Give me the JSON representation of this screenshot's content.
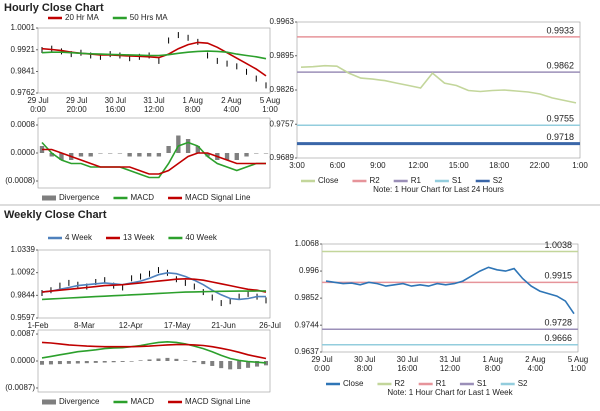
{
  "headers": [
    "Hourly Close Chart",
    "Weekly Close Chart"
  ],
  "chart_data": [
    {
      "type": "line",
      "x_labels": [
        [
          "29 Jul",
          "0:00"
        ],
        [
          "29 Jul",
          "20:00"
        ],
        [
          "30 Jul",
          "16:00"
        ],
        [
          "31 Jul",
          "12:00"
        ],
        [
          "1 Aug",
          "8:00"
        ],
        [
          "2 Aug",
          "4:00"
        ],
        [
          "5 Aug",
          "1:00"
        ]
      ],
      "ylim": [
        0.9762,
        1.0001
      ],
      "yticks": [
        1.0001,
        0.9921,
        0.9841,
        0.9762
      ],
      "series": [
        {
          "name": null,
          "color": "#000000",
          "values": [
            0.992,
            0.9925,
            0.9915,
            0.9905,
            0.991,
            0.99,
            0.9895,
            0.9905,
            0.99,
            0.989,
            0.9895,
            0.99,
            0.988,
            0.9955,
            0.9975,
            0.9965,
            0.995,
            0.99,
            0.988,
            0.987,
            0.986,
            0.984,
            0.9815,
            0.979
          ]
        },
        {
          "name": "20 Hr MA",
          "color": "#c00000",
          "values": [
            0.9925,
            0.9922,
            0.9918,
            0.9912,
            0.9908,
            0.9905,
            0.9902,
            0.9902,
            0.99,
            0.9898,
            0.9897,
            0.9895,
            0.9892,
            0.9905,
            0.9925,
            0.994,
            0.9948,
            0.9945,
            0.993,
            0.991,
            0.989,
            0.987,
            0.985,
            0.9825
          ]
        },
        {
          "name": "50 Hrs MA",
          "color": "#2ca02c",
          "values": [
            0.991,
            0.9912,
            0.9912,
            0.991,
            0.9908,
            0.9906,
            0.9905,
            0.9904,
            0.9903,
            0.9902,
            0.9901,
            0.99,
            0.99,
            0.9903,
            0.9908,
            0.9912,
            0.9915,
            0.9916,
            0.9915,
            0.9912,
            0.9905,
            0.99,
            0.9895,
            0.9888
          ]
        }
      ]
    },
    {
      "type": "macd",
      "ylim": [
        -0.001,
        0.001
      ],
      "yticks": [
        {
          "value": 0.0008,
          "label": "0.0008"
        },
        {
          "value": 0,
          "label": "0.0000"
        },
        {
          "value": -0.0008,
          "label": "(0.0008)"
        }
      ],
      "series": [
        {
          "name": "Divergence",
          "color": "#7f7f7f",
          "type": "bar",
          "values": [
            0.0002,
            -0.0001,
            -0.0002,
            -0.0002,
            -0.0001,
            -0.0001,
            0,
            0,
            0,
            -0.0001,
            -0.0001,
            -0.0001,
            -0.0001,
            0.0002,
            0.0005,
            0.0004,
            0.0002,
            -0.0001,
            -0.0002,
            -0.0002,
            -0.0002,
            -0.0001,
            0,
            0
          ]
        },
        {
          "name": "MACD",
          "color": "#2ca02c",
          "values": [
            0.0003,
            0,
            -0.0002,
            -0.0003,
            -0.0003,
            -0.0004,
            -0.0004,
            -0.0004,
            -0.0004,
            -0.0005,
            -0.0006,
            -0.0007,
            -0.0007,
            -0.0003,
            0.0002,
            0.0003,
            0.0002,
            -0.0001,
            -0.0003,
            -0.0004,
            -0.0005,
            -0.0004,
            -0.0003,
            -0.0003
          ]
        },
        {
          "name": "MACD Signal Line",
          "color": "#c00000",
          "values": [
            0.0001,
            0.0001,
            0,
            -0.0001,
            -0.0002,
            -0.0003,
            -0.0004,
            -0.0004,
            -0.0004,
            -0.0004,
            -0.0005,
            -0.0006,
            -0.0006,
            -0.0005,
            -0.0003,
            -0.0001,
            0,
            0,
            -0.0001,
            -0.0002,
            -0.0003,
            -0.0003,
            -0.0003,
            -0.0003
          ]
        }
      ]
    },
    {
      "type": "pivot",
      "x_labels": [
        [
          "3:00"
        ],
        [
          "6:00"
        ],
        [
          "9:00"
        ],
        [
          "12:00"
        ],
        [
          "15:00"
        ],
        [
          "18:00"
        ],
        [
          "22:00"
        ],
        [
          "1:00"
        ]
      ],
      "ylim": [
        0.9689,
        0.9963
      ],
      "yticks": [
        0.9963,
        0.9895,
        0.9826,
        0.9757,
        0.9689
      ],
      "series": [
        {
          "name": "Close",
          "color": "#c3d69b",
          "values": [
            0.9872,
            0.9873,
            0.9875,
            0.9874,
            0.986,
            0.985,
            0.9848,
            0.9845,
            0.984,
            0.9835,
            0.983,
            0.986,
            0.984,
            0.9835,
            0.9825,
            0.9823,
            0.9825,
            0.9826,
            0.9824,
            0.9822,
            0.9818,
            0.981,
            0.9805,
            0.98
          ]
        }
      ],
      "levels": [
        {
          "name": "R2",
          "color": "#e6949a",
          "value": 0.9933
        },
        {
          "name": "R1",
          "color": "#9b8fb8",
          "value": 0.9862
        },
        {
          "name": "S1",
          "color": "#93cddd",
          "value": 0.9755
        },
        {
          "name": "S2",
          "color": "#3a66a8",
          "value": 0.9718
        }
      ],
      "note": "Note: 1 Hour Chart for Last 24 Hours"
    },
    {
      "type": "line",
      "x_labels": [
        [
          "1-Feb"
        ],
        [
          "8-Mar"
        ],
        [
          "12-Apr"
        ],
        [
          "17-May"
        ],
        [
          "21-Jun"
        ],
        [
          "26-Jul"
        ]
      ],
      "ylim": [
        0.9597,
        1.0339
      ],
      "yticks": [
        1.0339,
        1.0092,
        0.9844,
        0.9597
      ],
      "series": [
        {
          "name": null,
          "color": "#000000",
          "values": [
            0.987,
            0.99,
            0.995,
            0.998,
            0.996,
            0.994,
            0.999,
            1.001,
            0.995,
            0.993,
            1.003,
            1.005,
            1.008,
            1.012,
            1.009,
            1.002,
            0.998,
            0.994,
            0.988,
            0.982,
            0.976,
            0.978,
            0.983,
            0.986,
            0.983,
            0.979
          ]
        },
        {
          "name": "4 Week",
          "color": "#4f81bd",
          "values": [
            0.988,
            0.989,
            0.991,
            0.993,
            0.995,
            0.996,
            0.997,
            0.998,
            0.997,
            0.996,
            0.998,
            1.0,
            1.003,
            1.007,
            1.009,
            1.008,
            1.005,
            1.001,
            0.996,
            0.99,
            0.985,
            0.981,
            0.98,
            0.981,
            0.983,
            0.983
          ]
        },
        {
          "name": "13 Week",
          "color": "#c00000",
          "values": [
            0.988,
            0.989,
            0.99,
            0.991,
            0.992,
            0.993,
            0.994,
            0.995,
            0.9955,
            0.996,
            0.997,
            0.998,
            0.999,
            1.0,
            1.001,
            1.002,
            1.0025,
            1.002,
            1.001,
            0.999,
            0.997,
            0.995,
            0.993,
            0.991,
            0.99,
            0.988
          ]
        },
        {
          "name": "40 Week",
          "color": "#2ca02c",
          "values": [
            0.98,
            0.9805,
            0.981,
            0.9815,
            0.982,
            0.9825,
            0.983,
            0.9835,
            0.984,
            0.9845,
            0.985,
            0.9855,
            0.986,
            0.9865,
            0.987,
            0.9875,
            0.988,
            0.9882,
            0.9884,
            0.9886,
            0.9888,
            0.9889,
            0.989,
            0.9891,
            0.9892,
            0.9893
          ]
        }
      ]
    },
    {
      "type": "macd",
      "ylim": [
        -0.01,
        0.01
      ],
      "yticks": [
        {
          "value": 0.0087,
          "label": "0.0087"
        },
        {
          "value": 0,
          "label": "0.0000"
        },
        {
          "value": -0.0087,
          "label": "(0.0087)"
        }
      ],
      "series": [
        {
          "name": "Divergence",
          "color": "#7f7f7f",
          "type": "bar",
          "values": [
            -0.0012,
            -0.0011,
            -0.001,
            -0.0009,
            -0.0008,
            -0.0007,
            -0.0006,
            -0.0005,
            -0.0004,
            -0.0003,
            -0.0002,
            0.0002,
            0.0005,
            0.0008,
            0.001,
            0.0007,
            0.0002,
            -0.0004,
            -0.001,
            -0.0016,
            -0.0023,
            -0.0027,
            -0.0026,
            -0.0022,
            -0.0018,
            -0.0014
          ]
        },
        {
          "name": "MACD",
          "color": "#2ca02c",
          "values": [
            0.001,
            0.0015,
            0.002,
            0.0025,
            0.003,
            0.0033,
            0.0036,
            0.004,
            0.0042,
            0.0043,
            0.0046,
            0.005,
            0.0055,
            0.006,
            0.0062,
            0.006,
            0.0055,
            0.0048,
            0.004,
            0.003,
            0.0018,
            0.0008,
            0.0002,
            -0.0002,
            -0.0004,
            -0.0006
          ]
        },
        {
          "name": "MACD Signal Line",
          "color": "#c00000",
          "values": [
            0.006,
            0.0058,
            0.0055,
            0.0052,
            0.005,
            0.0048,
            0.0047,
            0.0046,
            0.0046,
            0.0046,
            0.0046,
            0.0047,
            0.0048,
            0.005,
            0.0052,
            0.0053,
            0.0053,
            0.0052,
            0.005,
            0.0046,
            0.0041,
            0.0035,
            0.0028,
            0.002,
            0.0014,
            0.0008
          ]
        }
      ]
    },
    {
      "type": "pivot",
      "x_labels": [
        [
          "29 Jul",
          "0:00"
        ],
        [
          "30 Jul",
          "8:00"
        ],
        [
          "30 Jul",
          "16:00"
        ],
        [
          "31 Jul",
          "12:00"
        ],
        [
          "1 Aug",
          "8:00"
        ],
        [
          "2 Aug",
          "4:00"
        ],
        [
          "5 Aug",
          "1:00"
        ]
      ],
      "ylim": [
        0.9637,
        1.0068
      ],
      "yticks": [
        1.0068,
        0.996,
        0.9852,
        0.9744,
        0.9637
      ],
      "series": [
        {
          "name": "Close",
          "color": "#2e75b6",
          "values": [
            0.992,
            0.9915,
            0.991,
            0.9912,
            0.9905,
            0.9915,
            0.991,
            0.99,
            0.9905,
            0.991,
            0.99,
            0.9905,
            0.99,
            0.991,
            0.9905,
            0.991,
            0.992,
            0.994,
            0.996,
            0.9975,
            0.9965,
            0.996,
            0.997,
            0.993,
            0.99,
            0.988,
            0.987,
            0.986,
            0.984,
            0.979
          ]
        }
      ],
      "levels": [
        {
          "name": "R2",
          "color": "#c3d69b",
          "value": 1.0038
        },
        {
          "name": "R1",
          "color": "#e6949a",
          "value": 0.9915
        },
        {
          "name": "S1",
          "color": "#9b8fb8",
          "value": 0.9728
        },
        {
          "name": "S2",
          "color": "#93cddd",
          "value": 0.9666
        }
      ],
      "note": "Note: 1 Hour Chart for Last 1 Week"
    }
  ]
}
